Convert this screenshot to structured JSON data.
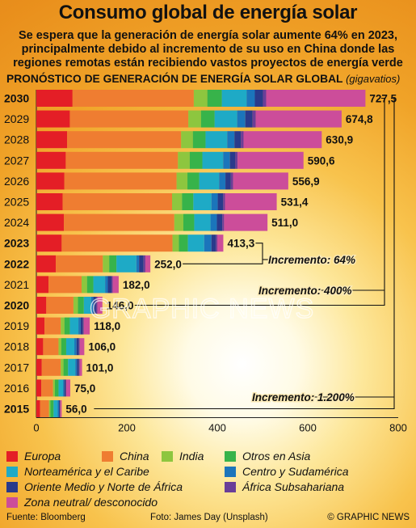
{
  "header": {
    "title": "Consumo global de energía solar",
    "subtitle": "Se espera que la generación de energía solar aumente 64% en 2023, principalmente debido al incremento de su uso en China donde las regiones remotas están recibiendo vastos proyectos de energía verde",
    "chart_heading": "PRONÓSTICO DE GENERACIÓN DE ENERGÍA SOLAR GLOBAL",
    "chart_unit": "(gigavatios)"
  },
  "chart_data": {
    "type": "bar",
    "orientation": "horizontal",
    "stacked": true,
    "categories": [
      "2030",
      "2029",
      "2028",
      "2027",
      "2026",
      "2025",
      "2024",
      "2023",
      "2022",
      "2021",
      "2020",
      "2019",
      "2018",
      "2017",
      "2016",
      "2015"
    ],
    "bold_categories": [
      "2030",
      "2023",
      "2022",
      "2020",
      "2015"
    ],
    "totals": [
      "727,5",
      "674,8",
      "630,9",
      "590,6",
      "556,9",
      "531,4",
      "511,0",
      "413,3",
      "252,0",
      "182,0",
      "146,0",
      "118,0",
      "106,0",
      "101,0",
      "75,0",
      "56,0"
    ],
    "xlim": [
      0,
      800
    ],
    "xticks": [
      0,
      200,
      400,
      600,
      800
    ],
    "series": [
      {
        "name": "Europa",
        "color": "#e41e26",
        "values": [
          80,
          74,
          68,
          65,
          62,
          58,
          61,
          56,
          43,
          27,
          22,
          18,
          15,
          12,
          11,
          8
        ]
      },
      {
        "name": "China",
        "color": "#ef7d31",
        "values": [
          268,
          262,
          252,
          248,
          248,
          242,
          244,
          245,
          104,
          73,
          60,
          36,
          34,
          42,
          26,
          20
        ]
      },
      {
        "name": "India",
        "color": "#8dc63f",
        "values": [
          30,
          28,
          26,
          26,
          24,
          22,
          20,
          14,
          14,
          12,
          10,
          8,
          6,
          6,
          4,
          3
        ]
      },
      {
        "name": "Otros en Asia",
        "color": "#37b34a",
        "values": [
          32,
          30,
          28,
          28,
          26,
          25,
          24,
          20,
          16,
          14,
          13,
          12,
          11,
          10,
          8,
          7
        ]
      },
      {
        "name": "Norteamérica y el Caribe",
        "color": "#1eaac6",
        "values": [
          55,
          50,
          48,
          46,
          44,
          40,
          36,
          36,
          44,
          26,
          16,
          19,
          18,
          16,
          10,
          9
        ]
      },
      {
        "name": "Centro y Sudamérica",
        "color": "#1b75bb",
        "values": [
          18,
          18,
          16,
          15,
          14,
          14,
          14,
          16,
          6,
          6,
          5,
          5,
          5,
          4,
          3,
          3
        ]
      },
      {
        "name": "Oriente Medio y Norte de África",
        "color": "#293a8b",
        "values": [
          18,
          16,
          14,
          12,
          12,
          12,
          12,
          10,
          10,
          8,
          6,
          5,
          5,
          4,
          3,
          2
        ]
      },
      {
        "name": "África Subsahariana",
        "color": "#6a3e98",
        "values": [
          7,
          7,
          6,
          5,
          5,
          4,
          4,
          3,
          4,
          3,
          3,
          2,
          2,
          2,
          1,
          1
        ]
      },
      {
        "name": "Zona neutral/ desconocido",
        "color": "#cc4d9a",
        "values": [
          219.5,
          189.8,
          172.9,
          145.6,
          121.9,
          114.4,
          96.0,
          13.3,
          11.0,
          13.0,
          11.0,
          13.0,
          10.0,
          5.0,
          9.0,
          3.0
        ]
      }
    ],
    "annotations": [
      {
        "text": "Incremento: 64%",
        "from": "2022",
        "to": "2023"
      },
      {
        "text": "Incremento: 400%",
        "from": "2020",
        "to": "2030"
      },
      {
        "text": "Incremento: 1.200%",
        "from": "2015",
        "to": "2030"
      }
    ]
  },
  "footer": {
    "source": "Fuente: Bloomberg",
    "photo": "Foto: James Day (Unsplash)",
    "copyright": "© GRAPHIC NEWS"
  },
  "watermark": {
    "text": "GRAPHIC NEWS"
  }
}
